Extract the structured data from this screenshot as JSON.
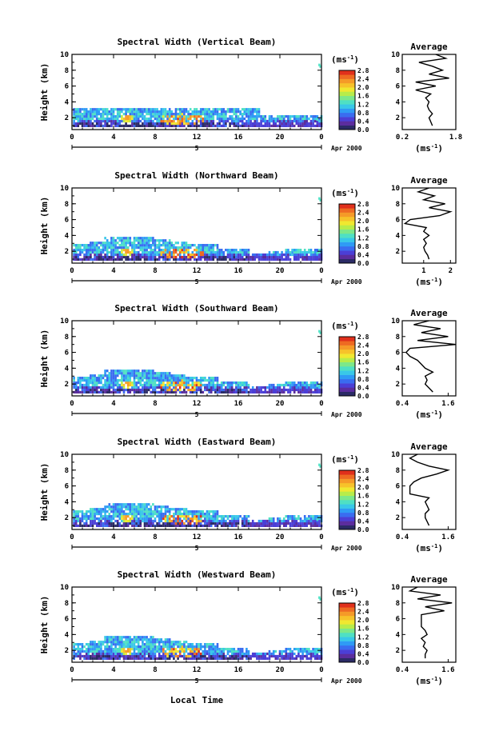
{
  "figure": {
    "xlabel": "Local Time",
    "date_label": "Apr 2000",
    "day_marker": "5",
    "colorbar_unit": "(ms",
    "colorbar_unit_exp": "-1",
    "colorbar_unit_close": ")",
    "average_title": "Average",
    "average_xlabel": "(ms",
    "average_xlabel_exp": "-1",
    "average_xlabel_close": ")",
    "ylabel": "Height (km)"
  },
  "colors": {
    "colorbar": [
      "#2b2b66",
      "#5b2d9e",
      "#4b3fd6",
      "#3a6cf0",
      "#2f9bf5",
      "#39c8e8",
      "#4fe0c4",
      "#7de88a",
      "#b8ec4a",
      "#f0e830",
      "#f7c22a",
      "#f59a28",
      "#ee6a22",
      "#e0301c"
    ],
    "background_level": "#45b8ee"
  },
  "chart_data": [
    {
      "type": "heatmap",
      "title": "Spectral Width (Vertical Beam)",
      "xlabel": "Local Time",
      "ylabel": "Height (km)",
      "xlim": [
        0,
        24
      ],
      "ylim": [
        0.5,
        10
      ],
      "xticks": [
        "0",
        "4",
        "8",
        "12",
        "16",
        "20",
        "0"
      ],
      "yticks": [
        "2",
        "4",
        "6",
        "8",
        "10"
      ],
      "colorbar_ticks": [
        "0.0",
        "0.4",
        "0.8",
        "1.2",
        "1.6",
        "2.0",
        "2.4",
        "2.8"
      ],
      "colorbar_range": [
        0.0,
        2.8
      ],
      "profile": {
        "title": "Average",
        "xlim": [
          0.2,
          1.8
        ],
        "xticks": [
          "0.2",
          "1.8"
        ],
        "ylim": [
          0.5,
          10
        ],
        "heights": [
          1.0,
          1.5,
          2.0,
          2.5,
          3.0,
          3.5,
          4.0,
          4.5,
          5.0,
          5.5,
          6.0,
          6.5,
          7.0,
          7.5,
          8.0,
          8.5,
          9.0,
          9.5,
          10.0
        ],
        "values": [
          1.1,
          1.05,
          1.0,
          1.1,
          1.0,
          0.95,
          1.0,
          0.9,
          1.05,
          0.6,
          1.2,
          0.6,
          1.6,
          1.0,
          1.4,
          1.1,
          0.7,
          1.5,
          1.2
        ]
      }
    },
    {
      "type": "heatmap",
      "title": "Spectral Width (Northward Beam)",
      "xlabel": "Local Time",
      "ylabel": "Height (km)",
      "xlim": [
        0,
        24
      ],
      "ylim": [
        0.5,
        10
      ],
      "xticks": [
        "0",
        "4",
        "8",
        "12",
        "16",
        "20",
        "0"
      ],
      "yticks": [
        "2",
        "4",
        "6",
        "8",
        "10"
      ],
      "colorbar_ticks": [
        "0.0",
        "0.4",
        "0.8",
        "1.2",
        "1.6",
        "2.0",
        "2.4",
        "2.8"
      ],
      "colorbar_range": [
        0.0,
        2.8
      ],
      "profile": {
        "title": "Average",
        "xlim": [
          0.2,
          2.2
        ],
        "xticks": [
          "1",
          "2"
        ],
        "ylim": [
          0.5,
          10
        ],
        "heights": [
          1.0,
          1.5,
          2.0,
          2.5,
          3.0,
          3.5,
          4.0,
          4.5,
          5.0,
          5.5,
          6.0,
          6.5,
          7.0,
          7.5,
          8.0,
          8.5,
          9.0,
          9.5,
          10.0
        ],
        "values": [
          1.2,
          1.15,
          1.05,
          1.0,
          1.1,
          1.0,
          1.2,
          1.0,
          1.1,
          0.3,
          0.5,
          1.6,
          2.0,
          1.2,
          1.8,
          1.0,
          1.4,
          0.8,
          1.2
        ]
      }
    },
    {
      "type": "heatmap",
      "title": "Spectral Width (Southward Beam)",
      "xlabel": "Local Time",
      "ylabel": "Height (km)",
      "xlim": [
        0,
        24
      ],
      "ylim": [
        0.5,
        10
      ],
      "xticks": [
        "0",
        "4",
        "8",
        "12",
        "16",
        "20",
        "0"
      ],
      "yticks": [
        "2",
        "4",
        "6",
        "8",
        "10"
      ],
      "colorbar_ticks": [
        "0.0",
        "0.4",
        "0.8",
        "1.2",
        "1.6",
        "2.0",
        "2.4",
        "2.8"
      ],
      "colorbar_range": [
        0.0,
        2.8
      ],
      "profile": {
        "title": "Average",
        "xlim": [
          0.4,
          1.8
        ],
        "xticks": [
          "0.4",
          "1.6"
        ],
        "ylim": [
          0.5,
          10
        ],
        "heights": [
          1.0,
          1.5,
          2.0,
          2.5,
          3.0,
          3.5,
          4.0,
          4.5,
          5.0,
          5.5,
          6.0,
          6.5,
          7.0,
          7.5,
          8.0,
          8.5,
          9.0,
          9.5,
          10.0
        ],
        "values": [
          1.2,
          1.1,
          1.0,
          1.05,
          1.0,
          1.2,
          1.0,
          0.9,
          0.8,
          0.6,
          0.5,
          0.6,
          1.8,
          0.8,
          1.6,
          0.9,
          1.4,
          0.7,
          1.1
        ]
      }
    },
    {
      "type": "heatmap",
      "title": "Spectral Width (Eastward Beam)",
      "xlabel": "Local Time",
      "ylabel": "Height (km)",
      "xlim": [
        0,
        24
      ],
      "ylim": [
        0.5,
        10
      ],
      "xticks": [
        "0",
        "4",
        "8",
        "12",
        "16",
        "20",
        "0"
      ],
      "yticks": [
        "2",
        "4",
        "6",
        "8",
        "10"
      ],
      "colorbar_ticks": [
        "0.0",
        "0.4",
        "0.8",
        "1.2",
        "1.6",
        "2.0",
        "2.4",
        "2.8"
      ],
      "colorbar_range": [
        0.0,
        2.8
      ],
      "profile": {
        "title": "Average",
        "xlim": [
          0.4,
          1.8
        ],
        "xticks": [
          "0.4",
          "1.6"
        ],
        "ylim": [
          0.5,
          10
        ],
        "heights": [
          1.0,
          1.5,
          2.0,
          2.5,
          3.0,
          3.5,
          4.0,
          4.5,
          5.0,
          5.5,
          6.0,
          6.5,
          7.0,
          7.5,
          8.0,
          8.5,
          9.0,
          9.5,
          10.0
        ],
        "values": [
          1.1,
          1.05,
          1.0,
          1.0,
          1.1,
          1.05,
          1.0,
          1.1,
          0.6,
          0.6,
          0.6,
          0.7,
          0.9,
          1.3,
          1.6,
          1.1,
          0.8,
          0.6,
          0.8
        ]
      }
    },
    {
      "type": "heatmap",
      "title": "Spectral Width (Westward Beam)",
      "xlabel": "Local Time",
      "ylabel": "Height (km)",
      "xlim": [
        0,
        24
      ],
      "ylim": [
        0.5,
        10
      ],
      "xticks": [
        "0",
        "4",
        "8",
        "12",
        "16",
        "20",
        "0"
      ],
      "yticks": [
        "2",
        "4",
        "6",
        "8",
        "10"
      ],
      "colorbar_ticks": [
        "0.0",
        "0.4",
        "0.8",
        "1.2",
        "1.6",
        "2.0",
        "2.4",
        "2.8"
      ],
      "colorbar_range": [
        0.0,
        2.8
      ],
      "profile": {
        "title": "Average",
        "xlim": [
          0.4,
          1.8
        ],
        "xticks": [
          "0.4",
          "1.6"
        ],
        "ylim": [
          0.5,
          10
        ],
        "heights": [
          1.0,
          1.5,
          2.0,
          2.5,
          3.0,
          3.5,
          4.0,
          4.5,
          5.0,
          5.5,
          6.0,
          6.5,
          7.0,
          7.5,
          8.0,
          8.5,
          9.0,
          9.5,
          10.0
        ],
        "values": [
          1.0,
          1.0,
          1.05,
          0.95,
          1.0,
          0.9,
          1.05,
          1.0,
          0.9,
          0.9,
          0.9,
          0.9,
          1.5,
          1.0,
          1.7,
          0.8,
          1.4,
          0.6,
          0.8
        ]
      }
    }
  ]
}
